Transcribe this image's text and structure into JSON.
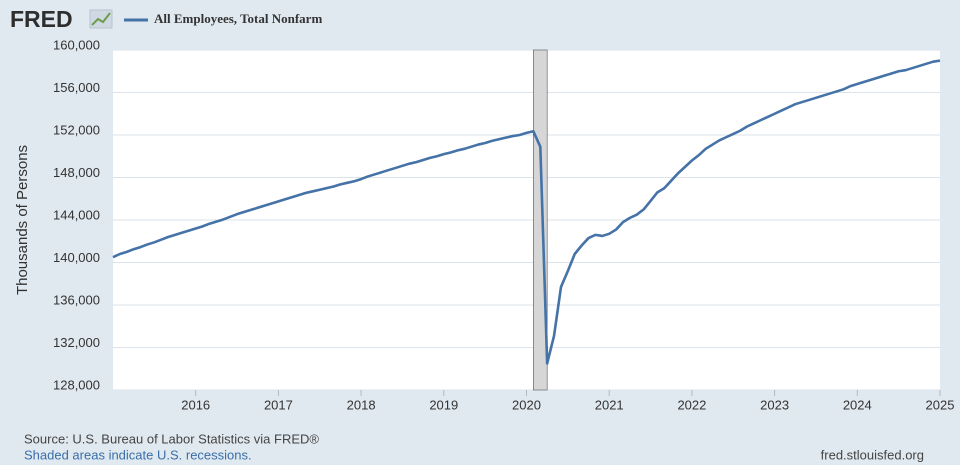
{
  "chart_data": {
    "type": "line",
    "brand": "FRED",
    "y_label": "Thousands of Persons",
    "source": "Source: U.S. Bureau of Labor Statistics via FRED®",
    "note": "Shaded areas indicate U.S. recessions.",
    "site": "fred.stlouisfed.org",
    "xlim": [
      2015,
      2025
    ],
    "xticks": [
      2016,
      2017,
      2018,
      2019,
      2020,
      2021,
      2022,
      2023,
      2024,
      2025
    ],
    "ylim": [
      128000,
      160000
    ],
    "yticks": [
      {
        "value": 128000,
        "label": "128,000"
      },
      {
        "value": 132000,
        "label": "132,000"
      },
      {
        "value": 136000,
        "label": "136,000"
      },
      {
        "value": 140000,
        "label": "140,000"
      },
      {
        "value": 144000,
        "label": "144,000"
      },
      {
        "value": 148000,
        "label": "148,000"
      },
      {
        "value": 152000,
        "label": "152,000"
      },
      {
        "value": 156000,
        "label": "156,000"
      },
      {
        "value": 160000,
        "label": "160,000"
      }
    ],
    "grid": true,
    "recessions": [
      [
        2020.083,
        2020.25
      ]
    ],
    "recession_color": "#d6d6d6",
    "x": [
      2015,
      2015.083,
      2015.167,
      2015.25,
      2015.333,
      2015.417,
      2015.5,
      2015.583,
      2015.667,
      2015.75,
      2015.833,
      2015.917,
      2016,
      2016.083,
      2016.167,
      2016.25,
      2016.333,
      2016.417,
      2016.5,
      2016.583,
      2016.667,
      2016.75,
      2016.833,
      2016.917,
      2017,
      2017.083,
      2017.167,
      2017.25,
      2017.333,
      2017.417,
      2017.5,
      2017.583,
      2017.667,
      2017.75,
      2017.833,
      2017.917,
      2018,
      2018.083,
      2018.167,
      2018.25,
      2018.333,
      2018.417,
      2018.5,
      2018.583,
      2018.667,
      2018.75,
      2018.833,
      2018.917,
      2019,
      2019.083,
      2019.167,
      2019.25,
      2019.333,
      2019.417,
      2019.5,
      2019.583,
      2019.667,
      2019.75,
      2019.833,
      2019.917,
      2020,
      2020.083,
      2020.167,
      2020.25,
      2020.333,
      2020.417,
      2020.5,
      2020.583,
      2020.667,
      2020.75,
      2020.833,
      2020.917,
      2021,
      2021.083,
      2021.167,
      2021.25,
      2021.333,
      2021.417,
      2021.5,
      2021.583,
      2021.667,
      2021.75,
      2021.833,
      2021.917,
      2022,
      2022.083,
      2022.167,
      2022.25,
      2022.333,
      2022.417,
      2022.5,
      2022.583,
      2022.667,
      2022.75,
      2022.833,
      2022.917,
      2023,
      2023.083,
      2023.167,
      2023.25,
      2023.333,
      2023.417,
      2023.5,
      2023.583,
      2023.667,
      2023.75,
      2023.833,
      2023.917,
      2024,
      2024.083,
      2024.167,
      2024.25,
      2024.333,
      2024.417,
      2024.5,
      2024.583,
      2024.667,
      2024.75,
      2024.833,
      2024.917,
      2025
    ],
    "series": [
      {
        "name": "All Employees, Total Nonfarm",
        "color": "#4572a7",
        "values": [
          140500,
          140800,
          141000,
          141250,
          141450,
          141700,
          141900,
          142150,
          142400,
          142600,
          142800,
          143000,
          143200,
          143400,
          143650,
          143850,
          144050,
          144300,
          144550,
          144750,
          144950,
          145150,
          145350,
          145550,
          145750,
          145950,
          146150,
          146350,
          146550,
          146700,
          146850,
          147000,
          147150,
          147350,
          147500,
          147650,
          147850,
          148100,
          148300,
          148500,
          148700,
          148900,
          149100,
          149300,
          149450,
          149650,
          149850,
          150000,
          150200,
          150350,
          150550,
          150700,
          150900,
          151100,
          151250,
          151450,
          151600,
          151750,
          151900,
          152000,
          152200,
          152350,
          150900,
          130500,
          133100,
          137700,
          139200,
          140800,
          141600,
          142300,
          142600,
          142500,
          142700,
          143100,
          143800,
          144200,
          144500,
          145000,
          145800,
          146600,
          147000,
          147700,
          148400,
          149000,
          149600,
          150100,
          150700,
          151100,
          151500,
          151800,
          152100,
          152400,
          152800,
          153100,
          153400,
          153700,
          154000,
          154300,
          154600,
          154900,
          155100,
          155300,
          155500,
          155700,
          155900,
          156100,
          156300,
          156600,
          156800,
          157000,
          157200,
          157400,
          157600,
          157800,
          158000,
          158100,
          158300,
          158500,
          158700,
          158900,
          159000
        ]
      }
    ]
  }
}
